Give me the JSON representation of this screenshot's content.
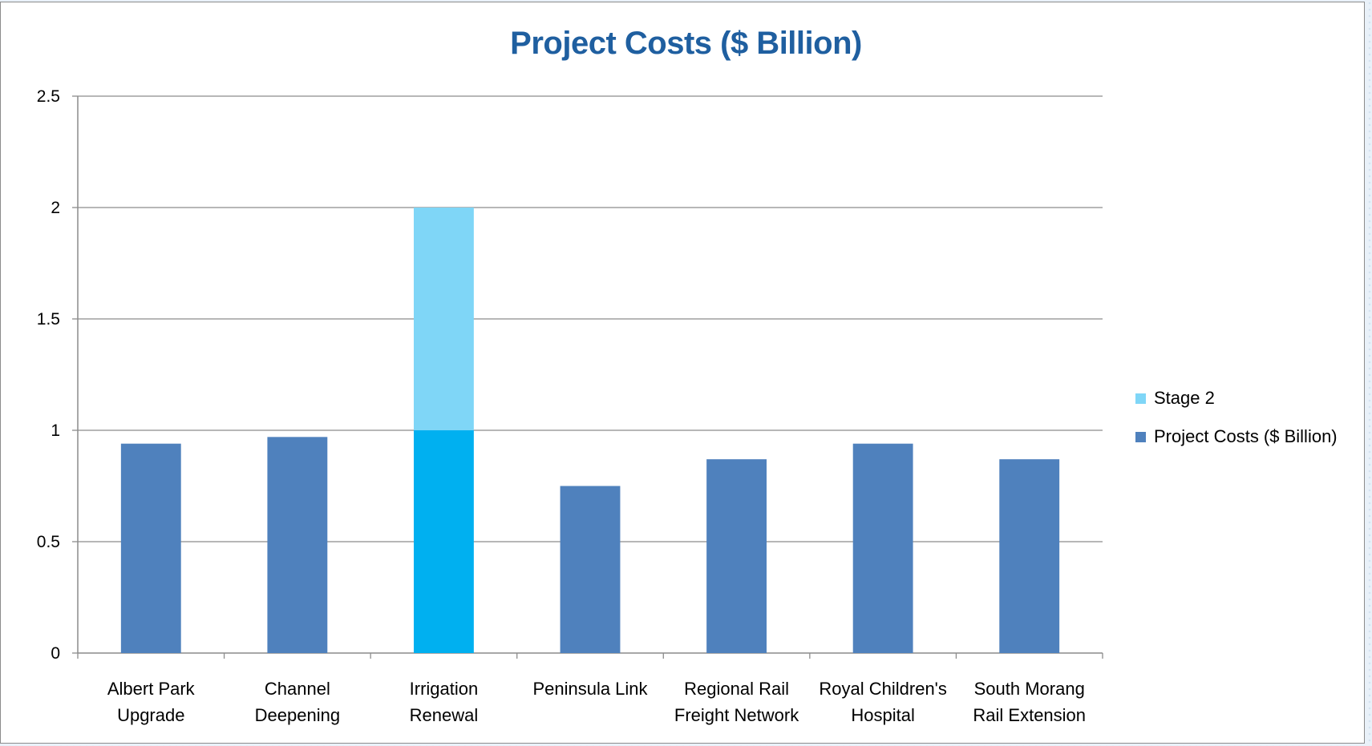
{
  "chart_data": {
    "type": "bar",
    "stacked": true,
    "title": "Project Costs ($ Billion)",
    "xlabel": "",
    "ylabel": "",
    "ylim": [
      0,
      2.5
    ],
    "yticks": [
      "0",
      "0.5",
      "1",
      "1.5",
      "2",
      "2.5"
    ],
    "grid": "horizontal",
    "legend_position": "right",
    "categories": [
      [
        "Albert Park",
        "Upgrade"
      ],
      [
        "Channel",
        "Deepening"
      ],
      [
        "Irrigation",
        "Renewal"
      ],
      [
        "Peninsula Link"
      ],
      [
        "Regional Rail",
        "Freight Network"
      ],
      [
        "Royal Children's",
        "Hospital"
      ],
      [
        "South Morang",
        "Rail Extension"
      ]
    ],
    "series": [
      {
        "name": "Project Costs ($ Billion)",
        "color": "#4f81bd",
        "highlight": {
          "index": 2,
          "color": "#00b0f0"
        },
        "values": [
          0.94,
          0.97,
          1.0,
          0.75,
          0.87,
          0.94,
          0.87
        ]
      },
      {
        "name": "Stage 2",
        "color": "#7fd6f7",
        "values": [
          0,
          0,
          1.0,
          0,
          0,
          0,
          0
        ]
      }
    ]
  }
}
